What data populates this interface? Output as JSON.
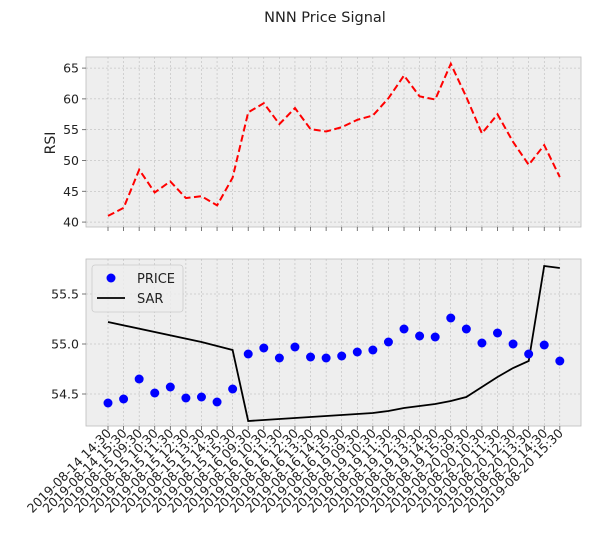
{
  "chart_data": {
    "type": "line",
    "title": "NNN Price Signal",
    "x": [
      "2019-08-14 14:30",
      "2019-08-14 15:30",
      "2019-08-15 09:30",
      "2019-08-15 10:30",
      "2019-08-15 11:30",
      "2019-08-15 12:30",
      "2019-08-15 13:30",
      "2019-08-15 14:30",
      "2019-08-15 15:30",
      "2019-08-16 09:30",
      "2019-08-16 10:30",
      "2019-08-16 11:30",
      "2019-08-16 12:30",
      "2019-08-16 13:30",
      "2019-08-16 14:30",
      "2019-08-16 15:30",
      "2019-08-19 09:30",
      "2019-08-19 10:30",
      "2019-08-19 11:30",
      "2019-08-19 12:30",
      "2019-08-19 13:30",
      "2019-08-19 14:30",
      "2019-08-19 15:30",
      "2019-08-20 09:30",
      "2019-08-20 10:30",
      "2019-08-20 11:30",
      "2019-08-20 12:30",
      "2019-08-20 13:30",
      "2019-08-20 14:30",
      "2019-08-20 15:30"
    ],
    "panels": [
      {
        "ylabel": "RSI",
        "ylim": [
          39.2,
          66.8
        ],
        "yticks": [
          40,
          45,
          50,
          55,
          60,
          65
        ],
        "series": [
          {
            "values": [
              41.0,
              42.3,
              48.5,
              44.8,
              46.6,
              43.9,
              44.2,
              42.7,
              47.2,
              57.8,
              59.3,
              55.9,
              58.5,
              55.1,
              54.7,
              55.4,
              56.6,
              57.3,
              60.1,
              63.8,
              60.4,
              59.9,
              65.7,
              60.3,
              54.4,
              57.5,
              53.0,
              49.3,
              52.5,
              47.3
            ],
            "color": "#ff0000",
            "style": "dashed"
          }
        ]
      },
      {
        "ylabel": "",
        "ylim": [
          54.18,
          55.85
        ],
        "yticks": [
          54.5,
          55.0,
          55.5
        ],
        "ytick_labels": [
          "54.5",
          "55.0",
          "55.5"
        ],
        "legend": "upper left",
        "series": [
          {
            "name": "PRICE",
            "type": "scatter",
            "color": "#0000ff",
            "values": [
              54.41,
              54.45,
              54.65,
              54.51,
              54.57,
              54.46,
              54.47,
              54.42,
              54.55,
              54.9,
              54.96,
              54.86,
              54.97,
              54.87,
              54.86,
              54.88,
              54.92,
              54.94,
              55.02,
              55.15,
              55.08,
              55.07,
              55.26,
              55.15,
              55.01,
              55.11,
              55.0,
              54.9,
              54.99,
              54.83
            ]
          },
          {
            "name": "SAR",
            "type": "line",
            "color": "#000000",
            "values": [
              55.22,
              null,
              null,
              null,
              null,
              null,
              55.02,
              null,
              54.94,
              54.23,
              54.24,
              54.25,
              54.26,
              54.27,
              54.28,
              54.29,
              54.3,
              54.31,
              54.33,
              54.36,
              54.38,
              54.4,
              54.43,
              54.47,
              54.57,
              54.67,
              54.76,
              54.83,
              55.78,
              55.76
            ]
          }
        ]
      }
    ],
    "grid": true
  }
}
